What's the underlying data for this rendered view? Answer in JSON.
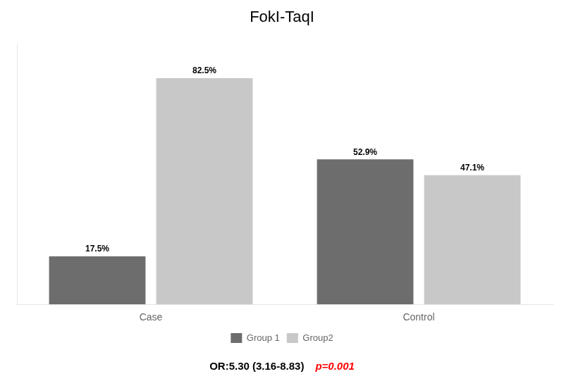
{
  "chart_data": {
    "type": "bar",
    "title": "FokI-TaqI",
    "categories": [
      "Case",
      "Control"
    ],
    "series": [
      {
        "name": "Group 1",
        "color": "#6d6d6d",
        "values": [
          17.5,
          52.9
        ],
        "value_labels": [
          "17.5%",
          "52.9%"
        ]
      },
      {
        "name": "Group2",
        "color": "#c8c8c8",
        "values": [
          82.5,
          47.1
        ],
        "value_labels": [
          "82.5%",
          "47.1%"
        ]
      }
    ],
    "ylim": [
      0,
      95
    ],
    "yticks": [],
    "grid": false,
    "legend": "bottom",
    "data_labels": true,
    "tick_labels": "x",
    "annotations": [
      {
        "text": "OR:5.30 (3.16-8.83)",
        "color": "#000000"
      },
      {
        "text": "p=0.001",
        "color": "#FF0000"
      }
    ]
  }
}
